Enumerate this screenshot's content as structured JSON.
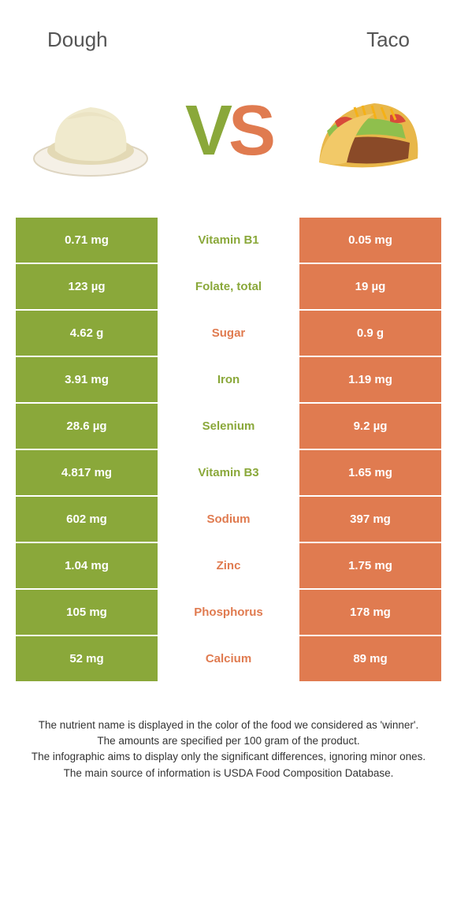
{
  "colors": {
    "left_food": "#8aa83a",
    "right_food": "#e07b50",
    "left_bg": "#8aa83a",
    "right_bg": "#e07b50",
    "text_dark": "#333333",
    "white": "#ffffff"
  },
  "header": {
    "left_title": "Dough",
    "right_title": "Taco"
  },
  "vs": {
    "left": "V",
    "right": "S"
  },
  "nutrients": [
    {
      "name": "Vitamin B1",
      "left": "0.71 mg",
      "right": "0.05 mg",
      "winner": "left"
    },
    {
      "name": "Folate, total",
      "left": "123 µg",
      "right": "19 µg",
      "winner": "left"
    },
    {
      "name": "Sugar",
      "left": "4.62 g",
      "right": "0.9 g",
      "winner": "right"
    },
    {
      "name": "Iron",
      "left": "3.91 mg",
      "right": "1.19 mg",
      "winner": "left"
    },
    {
      "name": "Selenium",
      "left": "28.6 µg",
      "right": "9.2 µg",
      "winner": "left"
    },
    {
      "name": "Vitamin B3",
      "left": "4.817 mg",
      "right": "1.65 mg",
      "winner": "left"
    },
    {
      "name": "Sodium",
      "left": "602 mg",
      "right": "397 mg",
      "winner": "right"
    },
    {
      "name": "Zinc",
      "left": "1.04 mg",
      "right": "1.75 mg",
      "winner": "right"
    },
    {
      "name": "Phosphorus",
      "left": "105 mg",
      "right": "178 mg",
      "winner": "right"
    },
    {
      "name": "Calcium",
      "left": "52 mg",
      "right": "89 mg",
      "winner": "right"
    }
  ],
  "notes": {
    "l1": "The nutrient name is displayed in the color of the food we considered as 'winner'.",
    "l2": "The amounts are specified per 100 gram of the product.",
    "l3": "The infographic aims to display only the significant differences, ignoring minor ones.",
    "l4": "The main source of information is USDA Food Composition Database."
  }
}
